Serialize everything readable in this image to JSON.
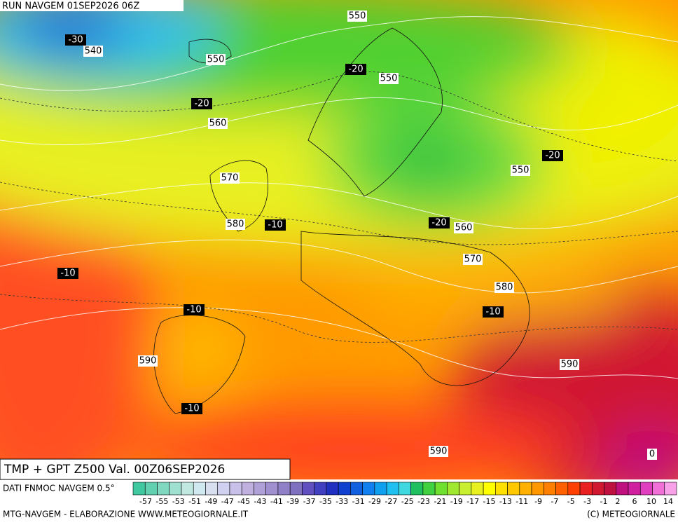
{
  "header": {
    "run": "RUN NAVGEM 01SEP2026 06Z"
  },
  "map": {
    "height_labels": [
      540,
      550,
      550,
      550,
      560,
      550,
      570,
      580,
      560,
      570,
      580,
      590,
      590,
      590
    ],
    "temperature_labels": [
      -30,
      -20,
      -20,
      -20,
      -10,
      -20,
      -10,
      -10,
      -10,
      -10,
      0
    ]
  },
  "title": "TMP + GPT Z500 Val. 00Z06SEP2026",
  "legend": {
    "source": "DATI FNMOC NAVGEM 0.5°",
    "colors": [
      "#40c8a0",
      "#60d0b0",
      "#80d8c0",
      "#a0e0d0",
      "#c0e8e0",
      "#d0e8f0",
      "#d8e0f0",
      "#d0d0f0",
      "#c8c0e8",
      "#c0b0e0",
      "#b0a0d8",
      "#a090d0",
      "#9080c8",
      "#8070c0",
      "#6050c0",
      "#4040c0",
      "#2030c0",
      "#1040d0",
      "#1060e0",
      "#1080f0",
      "#10a0f0",
      "#20c0f0",
      "#40d8e0",
      "#20c060",
      "#40d040",
      "#70e030",
      "#a0e830",
      "#c8f030",
      "#e8f020",
      "#ffff00",
      "#ffe000",
      "#ffc800",
      "#ffb000",
      "#ff9800",
      "#ff8000",
      "#ff6000",
      "#ff4000",
      "#e82020",
      "#d01830",
      "#c01040",
      "#c01080",
      "#d020a0",
      "#e040c0",
      "#f070d8",
      "#f8a0e8"
    ],
    "labels": [
      -57,
      -55,
      -53,
      -51,
      -49,
      -47,
      -45,
      -43,
      -41,
      -39,
      -37,
      -35,
      -33,
      -31,
      -29,
      -27,
      -25,
      -23,
      -21,
      -19,
      -17,
      -15,
      -13,
      -11,
      -9,
      -7,
      -5,
      -3,
      -1,
      2,
      6,
      10,
      14
    ]
  },
  "footer": {
    "left": "MTG-NAVGEM - ELABORAZIONE WWW.METEOGIORNALE.IT",
    "right": "(C) METEOGIORNALE"
  }
}
